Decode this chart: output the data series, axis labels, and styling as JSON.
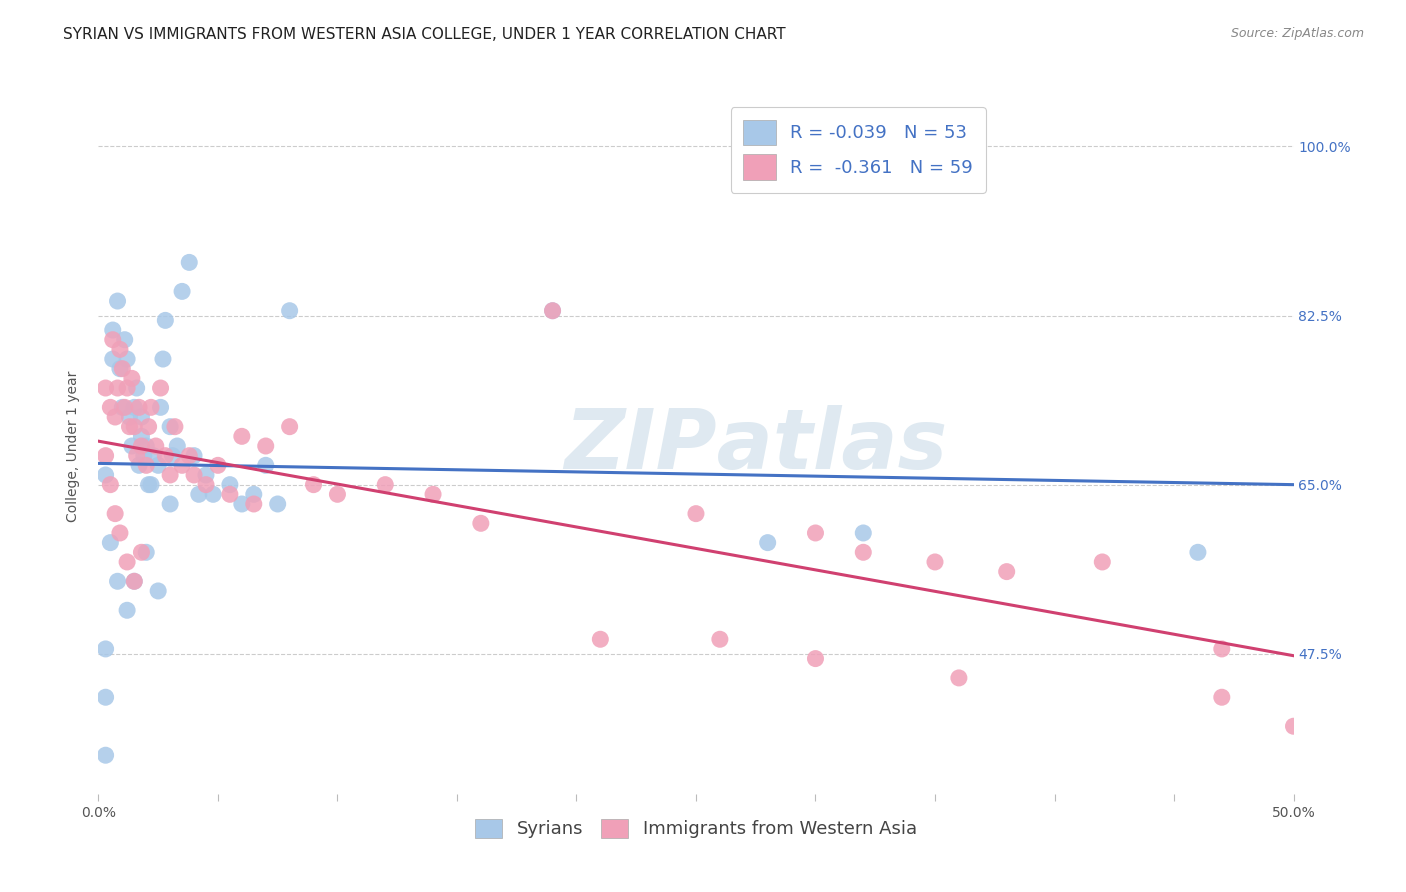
{
  "title": "SYRIAN VS IMMIGRANTS FROM WESTERN ASIA COLLEGE, UNDER 1 YEAR CORRELATION CHART",
  "source": "Source: ZipAtlas.com",
  "ylabel": "College, Under 1 year",
  "yticks": [
    "47.5%",
    "65.0%",
    "82.5%",
    "100.0%"
  ],
  "ytick_vals": [
    0.475,
    0.65,
    0.825,
    1.0
  ],
  "xlim": [
    0.0,
    0.5
  ],
  "ylim": [
    0.33,
    1.05
  ],
  "blue_color": "#a8c8e8",
  "pink_color": "#f0a0b8",
  "blue_line_color": "#4472c4",
  "pink_line_color": "#d04070",
  "legend_R_blue": "R = -0.039",
  "legend_N_blue": "N = 53",
  "legend_R_pink": "R =  -0.361",
  "legend_N_pink": "N = 59",
  "blue_points_x": [
    0.003,
    0.006,
    0.006,
    0.008,
    0.009,
    0.01,
    0.011,
    0.012,
    0.013,
    0.014,
    0.015,
    0.016,
    0.017,
    0.018,
    0.018,
    0.019,
    0.02,
    0.021,
    0.022,
    0.023,
    0.025,
    0.026,
    0.027,
    0.028,
    0.03,
    0.031,
    0.033,
    0.035,
    0.038,
    0.04,
    0.042,
    0.045,
    0.048,
    0.055,
    0.06,
    0.065,
    0.07,
    0.075,
    0.08,
    0.005,
    0.008,
    0.012,
    0.015,
    0.02,
    0.025,
    0.03,
    0.19,
    0.28,
    0.32,
    0.46,
    0.003,
    0.003,
    0.003
  ],
  "blue_points_y": [
    0.66,
    0.78,
    0.81,
    0.84,
    0.77,
    0.73,
    0.8,
    0.78,
    0.72,
    0.69,
    0.73,
    0.75,
    0.67,
    0.72,
    0.7,
    0.68,
    0.69,
    0.65,
    0.65,
    0.68,
    0.67,
    0.73,
    0.78,
    0.82,
    0.71,
    0.68,
    0.69,
    0.85,
    0.88,
    0.68,
    0.64,
    0.66,
    0.64,
    0.65,
    0.63,
    0.64,
    0.67,
    0.63,
    0.83,
    0.59,
    0.55,
    0.52,
    0.55,
    0.58,
    0.54,
    0.63,
    0.83,
    0.59,
    0.6,
    0.58,
    0.48,
    0.43,
    0.37
  ],
  "pink_points_x": [
    0.003,
    0.005,
    0.006,
    0.007,
    0.008,
    0.009,
    0.01,
    0.011,
    0.012,
    0.013,
    0.014,
    0.015,
    0.016,
    0.017,
    0.018,
    0.02,
    0.021,
    0.022,
    0.024,
    0.026,
    0.028,
    0.03,
    0.032,
    0.035,
    0.038,
    0.04,
    0.045,
    0.05,
    0.055,
    0.06,
    0.065,
    0.07,
    0.08,
    0.09,
    0.1,
    0.12,
    0.14,
    0.16,
    0.19,
    0.003,
    0.005,
    0.007,
    0.009,
    0.012,
    0.015,
    0.018,
    0.25,
    0.3,
    0.32,
    0.35,
    0.38,
    0.42,
    0.47,
    0.21,
    0.26,
    0.3,
    0.36,
    0.47,
    0.5
  ],
  "pink_points_y": [
    0.75,
    0.73,
    0.8,
    0.72,
    0.75,
    0.79,
    0.77,
    0.73,
    0.75,
    0.71,
    0.76,
    0.71,
    0.68,
    0.73,
    0.69,
    0.67,
    0.71,
    0.73,
    0.69,
    0.75,
    0.68,
    0.66,
    0.71,
    0.67,
    0.68,
    0.66,
    0.65,
    0.67,
    0.64,
    0.7,
    0.63,
    0.69,
    0.71,
    0.65,
    0.64,
    0.65,
    0.64,
    0.61,
    0.83,
    0.68,
    0.65,
    0.62,
    0.6,
    0.57,
    0.55,
    0.58,
    0.62,
    0.6,
    0.58,
    0.57,
    0.56,
    0.57,
    0.48,
    0.49,
    0.49,
    0.47,
    0.45,
    0.43,
    0.4
  ],
  "blue_trend_x": [
    0.0,
    0.5
  ],
  "blue_trend_y": [
    0.672,
    0.65
  ],
  "pink_trend_x": [
    0.0,
    0.5
  ],
  "pink_trend_y": [
    0.695,
    0.473
  ],
  "grid_color": "#cccccc",
  "background_color": "#ffffff",
  "title_fontsize": 11,
  "axis_label_fontsize": 10,
  "tick_fontsize": 10,
  "legend_fontsize": 13
}
